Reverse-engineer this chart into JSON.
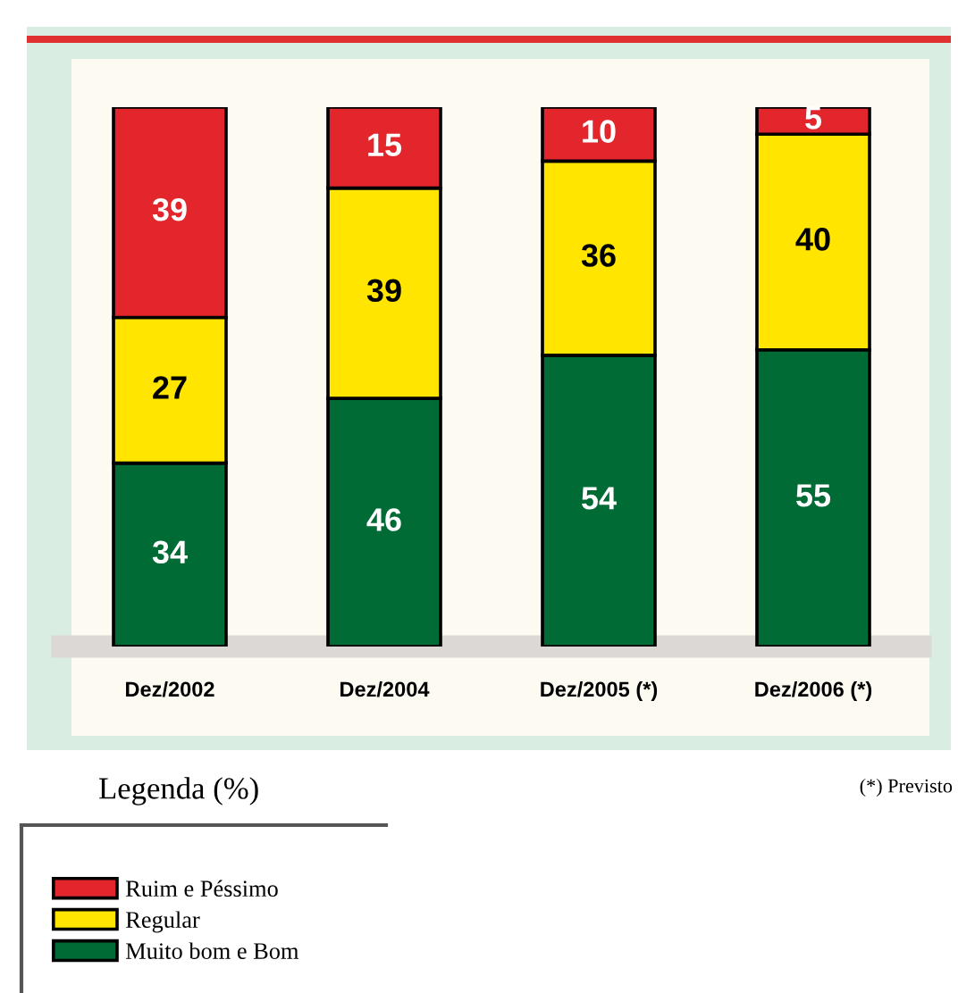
{
  "chart_data": {
    "type": "bar",
    "stacked": true,
    "categories": [
      "Dez/2002",
      "Dez/2004",
      "Dez/2005 (*)",
      "Dez/2006 (*)"
    ],
    "series": [
      {
        "name": "Muito bom e Bom",
        "color": "#006b35",
        "values": [
          34,
          46,
          54,
          55
        ]
      },
      {
        "name": "Regular",
        "color": "#ffe500",
        "values": [
          27,
          39,
          36,
          40
        ]
      },
      {
        "name": "Ruim e Péssimo",
        "color": "#e2262b",
        "values": [
          39,
          15,
          10,
          5
        ]
      }
    ],
    "ylim": [
      0,
      100
    ],
    "tick_labels": "x",
    "data_labels": true,
    "legend": "bottom left",
    "legend_title": "Legenda (%)",
    "annotations": [
      "(*) Previsto"
    ]
  }
}
